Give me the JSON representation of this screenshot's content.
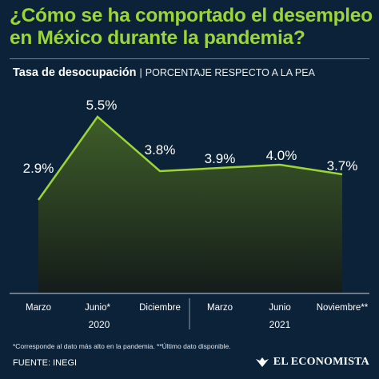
{
  "title": "¿Cómo se ha comportado el desempleo en México durante la pandemia?",
  "subtitle": {
    "strong": "Tasa de desocupación",
    "separator": "|",
    "light": "PORCENTAJE RESPECTO A LA PEA"
  },
  "chart_data": {
    "type": "area",
    "categories": [
      "Marzo",
      "Junio*",
      "Diciembre",
      "Marzo",
      "Junio",
      "Noviembre**"
    ],
    "values": [
      2.9,
      5.5,
      3.8,
      3.9,
      4.0,
      3.7
    ],
    "data_labels": [
      "2.9%",
      "5.5%",
      "3.8%",
      "3.9%",
      "4.0%",
      "3.7%"
    ],
    "year_groups": [
      {
        "label": "2020",
        "categories": [
          "Marzo",
          "Junio*",
          "Diciembre"
        ]
      },
      {
        "label": "2021",
        "categories": [
          "Marzo",
          "Junio",
          "Noviembre**"
        ]
      }
    ],
    "ylim": [
      0,
      6.5
    ],
    "grid": false,
    "line_color": "#9bd53a",
    "fill_color_top": "#3f5e29",
    "fill_color_bottom": "#141c1a"
  },
  "footnote": "*Corresponde al dato más alto en la pandemia. **Último dato disponible.",
  "source": "FUENTE: INEGI",
  "brand": "EL ECONOMISTA",
  "colors": {
    "background": "#0c2238",
    "accent": "#9bd53a",
    "text": "#ffffff"
  }
}
